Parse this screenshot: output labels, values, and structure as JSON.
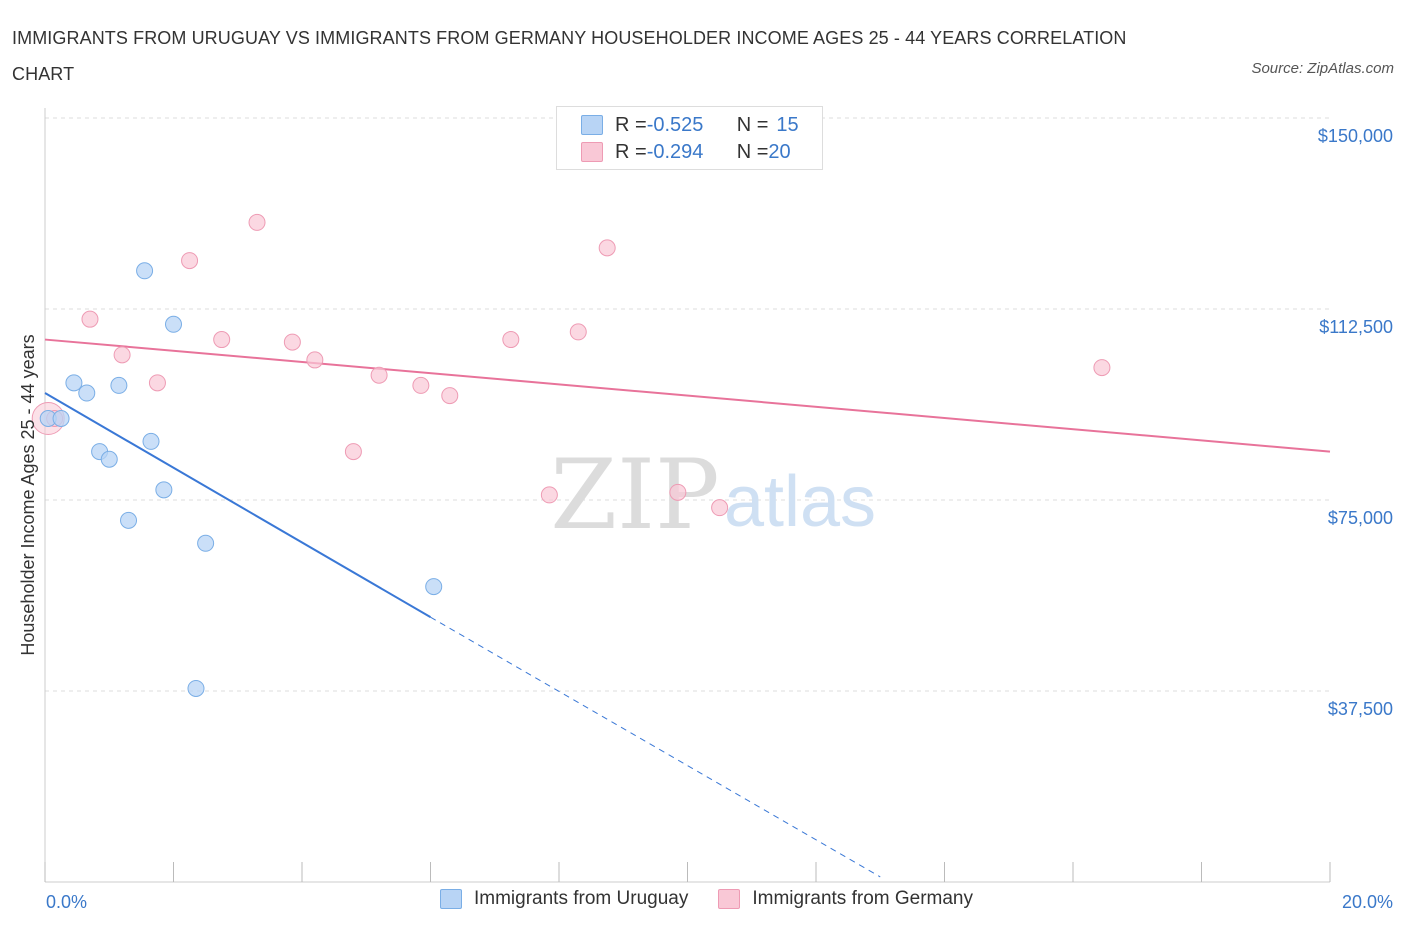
{
  "title": "IMMIGRANTS FROM URUGUAY VS IMMIGRANTS FROM GERMANY HOUSEHOLDER INCOME AGES 25 - 44 YEARS CORRELATION CHART",
  "source": "Source: ZipAtlas.com",
  "watermark": {
    "zip": "ZIP",
    "atlas": "atlas"
  },
  "legend": {
    "rows": [
      {
        "r_label": "R = ",
        "r_value": "-0.525",
        "n_label": "N = ",
        "n_value": "15"
      },
      {
        "r_label": "R = ",
        "r_value": "-0.294",
        "n_label": "N = ",
        "n_value": "20"
      }
    ]
  },
  "colors": {
    "uruguay_fill": "#b8d4f5",
    "uruguay_stroke": "#7aaee6",
    "uruguay_line": "#3a78d6",
    "germany_fill": "#f9c8d6",
    "germany_stroke": "#ee9bb4",
    "germany_line": "#e8739a",
    "axis_text": "#3a78c9",
    "grid": "#dddddd"
  },
  "chart_data": {
    "type": "scatter",
    "title": "IMMIGRANTS FROM URUGUAY VS IMMIGRANTS FROM GERMANY HOUSEHOLDER INCOME AGES 25 - 44 YEARS CORRELATION CHART",
    "xlabel": "",
    "ylabel": "Householder Income Ages 25 - 44 years",
    "xlim": [
      0,
      20
    ],
    "ylim": [
      0,
      150000
    ],
    "x_tick_labels": [
      "0.0%",
      "20.0%"
    ],
    "y_ticks": [
      37500,
      75000,
      112500,
      150000
    ],
    "y_tick_labels": [
      "$37,500",
      "$75,000",
      "$112,500",
      "$150,000"
    ],
    "grid": true,
    "legend_position": "top-center",
    "series": [
      {
        "name": "Immigrants from Uruguay",
        "R": -0.525,
        "N": 15,
        "points": [
          [
            0.05,
            91000
          ],
          [
            0.25,
            91000
          ],
          [
            0.45,
            98000
          ],
          [
            0.65,
            96000
          ],
          [
            0.85,
            84500
          ],
          [
            1.0,
            83000
          ],
          [
            1.15,
            97500
          ],
          [
            1.3,
            71000
          ],
          [
            1.55,
            120000
          ],
          [
            1.65,
            86500
          ],
          [
            1.85,
            77000
          ],
          [
            2.0,
            109500
          ],
          [
            2.5,
            66500
          ],
          [
            2.35,
            38000
          ],
          [
            6.05,
            58000
          ]
        ],
        "trend": {
          "x0": 0.0,
          "y0": 96000,
          "x1": 6.0,
          "y1": 52000,
          "dash_to_x": 13.0,
          "dash_to_y": 1000
        }
      },
      {
        "name": "Immigrants from Germany",
        "R": -0.294,
        "N": 20,
        "points": [
          [
            0.15,
            91000
          ],
          [
            0.7,
            110500
          ],
          [
            1.2,
            103500
          ],
          [
            1.75,
            98000
          ],
          [
            2.25,
            122000
          ],
          [
            2.75,
            106500
          ],
          [
            3.3,
            129500
          ],
          [
            3.85,
            106000
          ],
          [
            4.2,
            102500
          ],
          [
            5.2,
            99500
          ],
          [
            4.8,
            84500
          ],
          [
            5.85,
            97500
          ],
          [
            6.3,
            95500
          ],
          [
            7.25,
            106500
          ],
          [
            7.85,
            76000
          ],
          [
            8.3,
            108000
          ],
          [
            8.75,
            124500
          ],
          [
            9.85,
            76500
          ],
          [
            10.5,
            73500
          ],
          [
            16.45,
            101000
          ]
        ],
        "trend": {
          "x0": 0.0,
          "y0": 106500,
          "x1": 20.0,
          "y1": 84500
        }
      }
    ]
  }
}
